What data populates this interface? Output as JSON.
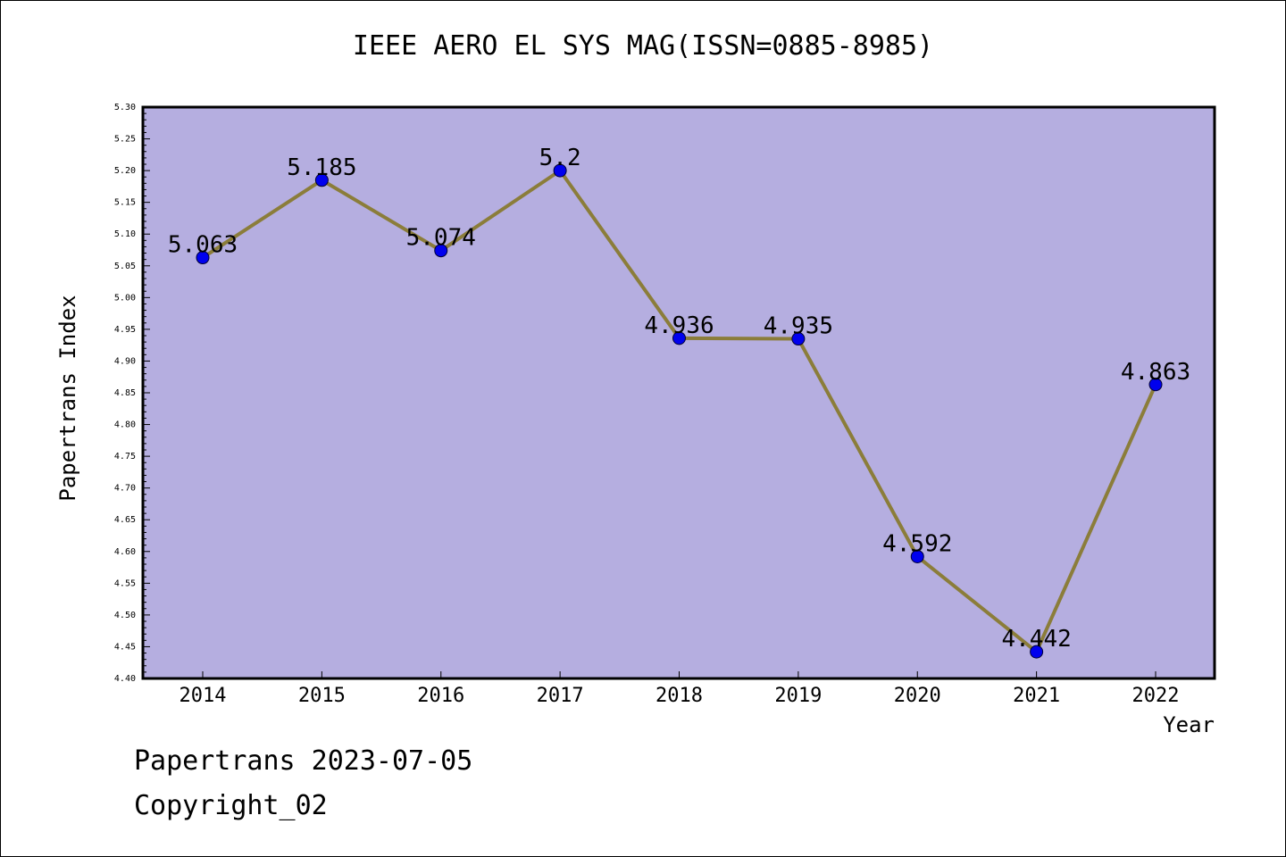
{
  "chart_data": {
    "type": "line",
    "title": "IEEE AERO EL SYS MAG(ISSN=0885-8985)",
    "xlabel": "Year",
    "ylabel": "Papertrans Index",
    "categories": [
      "2014",
      "2015",
      "2016",
      "2017",
      "2018",
      "2019",
      "2020",
      "2021",
      "2022"
    ],
    "series": [
      {
        "values": [
          5.063,
          5.185,
          5.074,
          5.2,
          4.936,
          4.935,
          4.592,
          4.442,
          4.863
        ],
        "labels": [
          "5.063",
          "5.185",
          "5.074",
          "5.2",
          "4.936",
          "4.935",
          "4.592",
          "4.442",
          "4.863"
        ]
      }
    ],
    "ylim": [
      4.4,
      5.3
    ],
    "yticks": [
      "4.40",
      "4.45",
      "4.50",
      "4.55",
      "4.60",
      "4.65",
      "4.70",
      "4.75",
      "4.80",
      "4.85",
      "4.90",
      "4.95",
      "5.00",
      "5.05",
      "5.10",
      "5.15",
      "5.20",
      "5.25",
      "5.30"
    ],
    "grid": false,
    "colors": {
      "plot_background": "#b5aee0",
      "line": "#8b7d3a",
      "marker": "#0000ee",
      "axis": "#000000"
    }
  },
  "footer": {
    "line1": "Papertrans 2023-07-05",
    "line2": "Copyright_02"
  }
}
